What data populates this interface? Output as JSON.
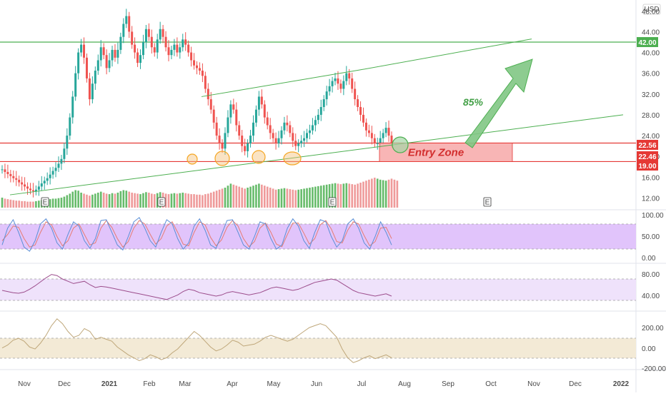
{
  "colors": {
    "up": "#26a69a",
    "down": "#ef5350",
    "vol_up": "#66bb6a",
    "vol_down": "#ef9a9a",
    "green_line": "#4caf50",
    "red_line": "#e53935",
    "entry_fill": "#f7a8a8",
    "entry_text": "#d32f2f",
    "arrow_fill": "#81c784",
    "arrow_stroke": "#4caf50",
    "pct_text": "#43a047",
    "stoch_band": "#e1c4fb",
    "rsi_band": "#efe2fb",
    "cci_band": "#f3ead6",
    "stoch_k": "#5b8fd6",
    "stoch_d": "#e67c73",
    "rsi_line": "#9c4d8c",
    "cci_line": "#bfa77a",
    "badge_dark": "#2e2e2e",
    "orange": "#f5a623"
  },
  "axis": {
    "currency": "USD",
    "price_ticks": [
      "48.00",
      "44.00",
      "40.00",
      "36.00",
      "32.00",
      "28.00",
      "24.00",
      "20.00",
      "16.00",
      "12.00"
    ],
    "price_tick_values": [
      48,
      44,
      40,
      36,
      32,
      28,
      24,
      20,
      16,
      12
    ],
    "price_badges": [
      {
        "label": "42.00",
        "value": 42,
        "color": "green"
      },
      {
        "label": "22.56",
        "value": 22.56,
        "color": "red"
      },
      {
        "label": "22.46",
        "value": 22.46,
        "color": "red"
      },
      {
        "label": "19.00",
        "value": 19,
        "color": "red"
      }
    ],
    "stoch_ticks": [
      "100.00",
      "50.00",
      "0.00"
    ],
    "rsi_ticks": [
      "80.00",
      "40.00"
    ],
    "cci_ticks": [
      "200.00",
      "0.00",
      "-200.00"
    ]
  },
  "time_axis": [
    "Nov",
    "Dec",
    "2021",
    "Feb",
    "Mar",
    "Apr",
    "May",
    "Jun",
    "Jul",
    "Aug",
    "Sep",
    "Oct",
    "Nov",
    "Dec",
    "2022"
  ],
  "earnings_markers": [
    "E",
    "E",
    "E",
    "E"
  ],
  "annotations": {
    "entry_zone": "Entry Zone",
    "probability": "85%"
  },
  "chart_data": {
    "type": "candlestick",
    "title": "",
    "price_range": [
      10,
      49
    ],
    "horizontal_levels": [
      42.0,
      22.56,
      19.0
    ],
    "entry_zone": [
      19.0,
      22.56
    ],
    "closes": [
      17.5,
      17.0,
      16.6,
      16.2,
      15.8,
      15.5,
      15.0,
      14.6,
      14.2,
      13.8,
      13.5,
      13.3,
      13.6,
      14.2,
      14.8,
      15.3,
      15.8,
      16.5,
      17.2,
      17.8,
      18.6,
      19.5,
      21.5,
      24.0,
      27.5,
      31.5,
      36.0,
      40.0,
      41.5,
      39.0,
      35.0,
      31.0,
      34.0,
      36.5,
      38.5,
      41.0,
      39.5,
      37.0,
      38.5,
      40.5,
      39.0,
      40.5,
      43.0,
      45.5,
      47.0,
      44.0,
      41.5,
      40.0,
      38.0,
      39.5,
      42.0,
      44.5,
      43.0,
      41.0,
      40.0,
      42.5,
      44.5,
      43.0,
      41.0,
      39.5,
      40.5,
      41.5,
      40.0,
      41.0,
      42.5,
      41.5,
      40.0,
      38.5,
      37.5,
      37.0,
      36.5,
      35.5,
      33.0,
      31.0,
      29.0,
      26.5,
      24.0,
      22.5,
      21.5,
      24.5,
      27.5,
      30.0,
      29.0,
      26.0,
      24.0,
      22.0,
      21.0,
      22.5,
      24.0,
      26.5,
      29.0,
      31.5,
      30.0,
      27.5,
      26.0,
      24.5,
      23.5,
      22.5,
      23.5,
      25.0,
      26.5,
      26.0,
      24.5,
      23.0,
      22.0,
      22.5,
      23.0,
      23.5,
      24.5,
      25.0,
      26.0,
      27.0,
      28.0,
      29.5,
      31.0,
      32.5,
      33.5,
      34.5,
      35.0,
      34.0,
      33.0,
      34.5,
      36.0,
      35.0,
      33.0,
      31.0,
      29.5,
      28.0,
      26.5,
      25.0,
      24.5,
      23.5,
      22.5,
      22.5,
      23.5,
      24.5,
      25.5,
      24.0,
      22.5
    ],
    "volume": [
      20,
      18,
      17,
      16,
      15,
      14,
      14,
      13,
      13,
      12,
      12,
      12,
      13,
      14,
      15,
      15,
      16,
      17,
      18,
      18,
      19,
      20,
      22,
      25,
      28,
      32,
      35,
      34,
      30,
      28,
      26,
      24,
      26,
      28,
      30,
      32,
      30,
      28,
      27,
      29,
      28,
      30,
      33,
      35,
      34,
      32,
      30,
      29,
      28,
      27,
      29,
      31,
      30,
      28,
      27,
      29,
      31,
      30,
      28,
      27,
      28,
      29,
      28,
      29,
      30,
      29,
      28,
      27,
      27,
      26,
      26,
      25,
      27,
      28,
      30,
      32,
      34,
      36,
      38,
      40,
      44,
      48,
      46,
      44,
      42,
      40,
      38,
      40,
      42,
      44,
      46,
      48,
      46,
      44,
      42,
      40,
      38,
      36,
      37,
      38,
      39,
      38,
      37,
      36,
      35,
      36,
      37,
      38,
      39,
      40,
      41,
      42,
      43,
      44,
      45,
      46,
      47,
      48,
      49,
      48,
      47,
      48,
      49,
      48,
      47,
      46,
      48,
      50,
      52,
      54,
      56,
      58,
      60,
      58,
      56,
      55,
      54,
      56,
      58,
      56,
      54
    ],
    "stoch_k": [
      30,
      70,
      90,
      60,
      25,
      15,
      40,
      80,
      92,
      70,
      35,
      20,
      55,
      85,
      75,
      40,
      22,
      45,
      88,
      90,
      60,
      30,
      18,
      50,
      85,
      95,
      70,
      40,
      25,
      60,
      90,
      80,
      45,
      20,
      35,
      75,
      92,
      65,
      30,
      22,
      55,
      88,
      90,
      60,
      30,
      20,
      50,
      85,
      80,
      45,
      20,
      30,
      70,
      92,
      75,
      40,
      22,
      60,
      90,
      85,
      50,
      25,
      40,
      80,
      92,
      70,
      35,
      20,
      50,
      85,
      60,
      30
    ],
    "stoch_d": [
      40,
      55,
      75,
      72,
      45,
      25,
      30,
      60,
      85,
      78,
      50,
      28,
      40,
      70,
      80,
      55,
      30,
      35,
      70,
      88,
      72,
      45,
      25,
      38,
      70,
      88,
      80,
      55,
      32,
      45,
      75,
      85,
      60,
      32,
      28,
      60,
      85,
      78,
      48,
      28,
      42,
      72,
      88,
      75,
      45,
      26,
      38,
      70,
      82,
      60,
      32,
      26,
      55,
      82,
      82,
      58,
      32,
      45,
      78,
      88,
      68,
      38,
      35,
      65,
      85,
      80,
      52,
      28,
      38,
      70,
      72,
      45
    ],
    "rsi": [
      50,
      48,
      46,
      45,
      47,
      52,
      58,
      65,
      72,
      78,
      76,
      70,
      66,
      62,
      64,
      66,
      60,
      55,
      57,
      56,
      54,
      52,
      50,
      48,
      46,
      44,
      42,
      40,
      38,
      36,
      34,
      38,
      42,
      48,
      52,
      50,
      46,
      44,
      42,
      40,
      42,
      46,
      48,
      46,
      44,
      42,
      44,
      46,
      50,
      54,
      56,
      54,
      52,
      50,
      52,
      56,
      60,
      64,
      66,
      68,
      70,
      68,
      62,
      56,
      50,
      46,
      44,
      42,
      40,
      42,
      44,
      40
    ],
    "cci": [
      -50,
      -20,
      30,
      50,
      20,
      -40,
      -60,
      0,
      80,
      180,
      250,
      200,
      120,
      60,
      80,
      150,
      120,
      40,
      60,
      40,
      20,
      -40,
      -80,
      -120,
      -150,
      -180,
      -160,
      -120,
      -140,
      -170,
      -150,
      -100,
      -60,
      0,
      60,
      120,
      80,
      20,
      -40,
      -80,
      -60,
      -20,
      30,
      10,
      -30,
      -20,
      -10,
      20,
      60,
      80,
      60,
      40,
      20,
      40,
      80,
      120,
      160,
      180,
      200,
      180,
      120,
      60,
      -60,
      -150,
      -200,
      -180,
      -150,
      -130,
      -160,
      -140,
      -120,
      -150
    ],
    "stoch_range": [
      0,
      100
    ],
    "rsi_range": [
      20,
      90
    ],
    "cci_range": [
      -250,
      300
    ],
    "target_probability": "85%"
  }
}
